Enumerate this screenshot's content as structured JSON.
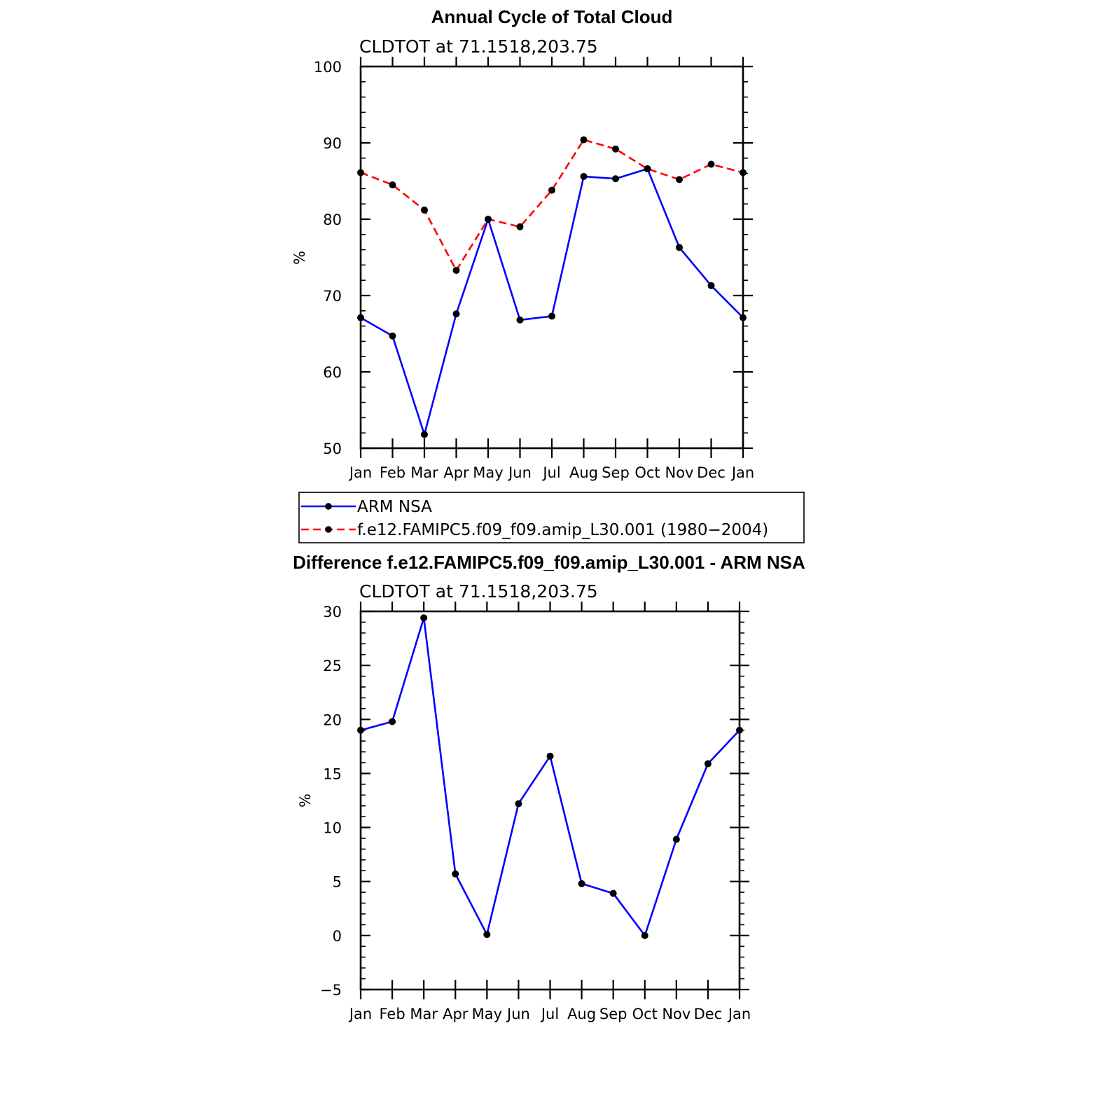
{
  "colors": {
    "obs": "#0000ff",
    "model": "#ff0000",
    "marker": "#000000"
  },
  "chart_data": [
    {
      "type": "line",
      "title": "Annual Cycle of Total Cloud",
      "subtitle": "CLDTOT at 71.1518,203.75",
      "ylabel": "%",
      "ylim": [
        50,
        100
      ],
      "yticks": [
        50,
        60,
        70,
        80,
        90,
        100
      ],
      "yminor_step": 2,
      "categories": [
        "Jan",
        "Feb",
        "Mar",
        "Apr",
        "May",
        "Jun",
        "Jul",
        "Aug",
        "Sep",
        "Oct",
        "Nov",
        "Dec",
        "Jan"
      ],
      "series": [
        {
          "name": "ARM NSA",
          "style": "solid",
          "color": "#0000ff",
          "values": [
            67.1,
            64.7,
            51.8,
            67.6,
            80.0,
            66.8,
            67.3,
            85.6,
            85.3,
            86.6,
            76.3,
            71.3,
            67.1
          ]
        },
        {
          "name": "f.e12.FAMIPC5.f09_f09.amip_L30.001 (1980−2004)",
          "style": "dashed",
          "color": "#ff0000",
          "values": [
            86.1,
            84.5,
            81.2,
            73.3,
            80.0,
            79.0,
            83.8,
            90.4,
            89.2,
            86.6,
            85.2,
            87.2,
            86.1
          ]
        }
      ],
      "legend": [
        "ARM NSA",
        "f.e12.FAMIPC5.f09_f09.amip_L30.001 (1980−2004)"
      ]
    },
    {
      "type": "line",
      "title": "Difference f.e12.FAMIPC5.f09_f09.amip_L30.001 - ARM NSA",
      "subtitle": "CLDTOT at 71.1518,203.75",
      "ylabel": "%",
      "ylim": [
        -5,
        30
      ],
      "yticks": [
        -5,
        0,
        5,
        10,
        15,
        20,
        25,
        30
      ],
      "yminor_step": 1,
      "categories": [
        "Jan",
        "Feb",
        "Mar",
        "Apr",
        "May",
        "Jun",
        "Jul",
        "Aug",
        "Sep",
        "Oct",
        "Nov",
        "Dec",
        "Jan"
      ],
      "series": [
        {
          "name": "Difference",
          "style": "solid",
          "color": "#0000ff",
          "values": [
            19.0,
            19.8,
            29.4,
            5.7,
            0.1,
            12.2,
            16.6,
            4.8,
            3.9,
            0.0,
            8.9,
            15.9,
            19.0
          ]
        }
      ]
    }
  ]
}
